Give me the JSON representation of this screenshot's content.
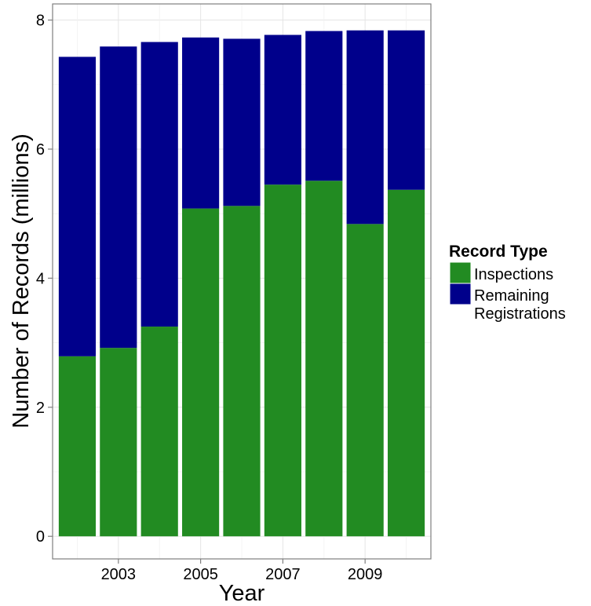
{
  "chart_data": {
    "type": "bar",
    "stacked": true,
    "title": "",
    "xlabel": "Year",
    "ylabel": "Number of Records (millions)",
    "categories": [
      2002,
      2003,
      2004,
      2005,
      2006,
      2007,
      2008,
      2009,
      2010
    ],
    "x_tick_labels": [
      "2003",
      "2005",
      "2007",
      "2009"
    ],
    "y_tick_labels": [
      "0",
      "2",
      "4",
      "6",
      "8"
    ],
    "ylim": [
      -0.35,
      8.25
    ],
    "grid": true,
    "legend_position": "right",
    "legend_title": "Record Type",
    "series": [
      {
        "name": "Inspections",
        "color": "#228b22",
        "values": [
          2.79,
          2.92,
          3.25,
          5.08,
          5.12,
          5.45,
          5.51,
          4.84,
          5.37
        ]
      },
      {
        "name": "Remaining Registrations",
        "color": "#00008b",
        "values": [
          4.64,
          4.67,
          4.41,
          2.65,
          2.59,
          2.32,
          2.32,
          3.0,
          2.47
        ]
      }
    ]
  },
  "legend": {
    "title": "Record Type",
    "items": [
      {
        "lines": [
          "Inspections"
        ],
        "color": "#228b22"
      },
      {
        "lines": [
          "Remaining",
          "Registrations"
        ],
        "color": "#00008b"
      }
    ]
  }
}
